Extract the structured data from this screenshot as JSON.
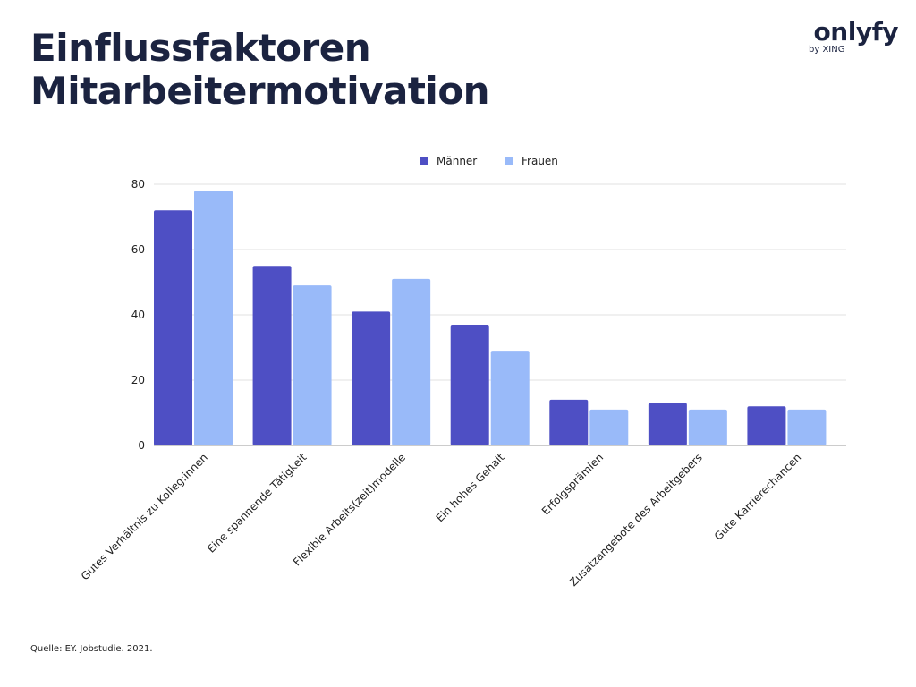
{
  "header": {
    "title_line1": "Einflussfaktoren",
    "title_line2": "Mitarbeitermotivation"
  },
  "logo": {
    "word": "onlyfy",
    "sub": "by XING"
  },
  "source": "Quelle: EY. Jobstudie. 2021.",
  "colors": {
    "maenner": "#4e4fc4",
    "frauen": "#99baf9",
    "text": "#1b2340",
    "grid": "#e2e2e2"
  },
  "chart_data": {
    "type": "bar",
    "title": "",
    "xlabel": "",
    "ylabel": "",
    "ylim": [
      0,
      80
    ],
    "yticks": [
      0,
      20,
      40,
      60,
      80
    ],
    "grid": true,
    "legend_position": "top-center",
    "categories": [
      "Gutes Verhältnis zu Kolleg:innen",
      "Eine spannende Tätigkeit",
      "Flexible Arbeits(zeit)modelle",
      "Ein hohes Gehalt",
      "Erfolgsprämien",
      "Zusatzangebote des Arbeitgebers",
      "Gute Karrierechancen"
    ],
    "series": [
      {
        "name": "Männer",
        "values": [
          72,
          55,
          41,
          37,
          14,
          13,
          12
        ]
      },
      {
        "name": "Frauen",
        "values": [
          78,
          49,
          51,
          29,
          11,
          11,
          11
        ]
      }
    ]
  }
}
